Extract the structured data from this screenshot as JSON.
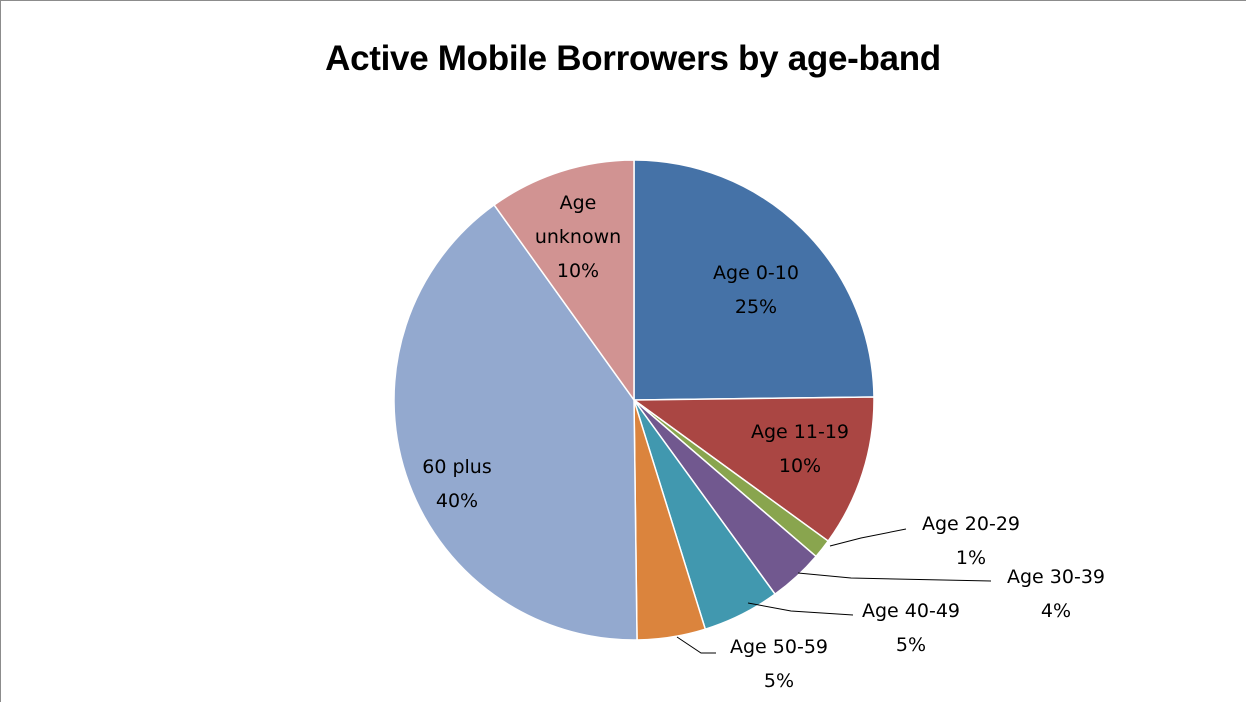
{
  "chart_data": {
    "type": "pie",
    "title": "Active Mobile Borrowers by age-band",
    "slices": [
      {
        "label": "Age 0-10",
        "percent_label": "25%",
        "value": 24.8,
        "color": "#4572A7"
      },
      {
        "label": "Age 11-19",
        "percent_label": "10%",
        "value": 10.2,
        "color": "#AA4643"
      },
      {
        "label": "Age 20-29",
        "percent_label": "1%",
        "value": 1.3,
        "color": "#89A54E"
      },
      {
        "label": "Age 30-39",
        "percent_label": "4%",
        "value": 3.7,
        "color": "#71588F"
      },
      {
        "label": "Age 40-49",
        "percent_label": "5%",
        "value": 5.2,
        "color": "#4198AF"
      },
      {
        "label": "Age 50-59",
        "percent_label": "5%",
        "value": 4.6,
        "color": "#DB843D"
      },
      {
        "label": "60 plus",
        "percent_label": "40%",
        "value": 40.3,
        "color": "#93A9CF"
      },
      {
        "label": "Age unknown",
        "percent_label": "10%",
        "value": 9.9,
        "color": "#D19392"
      }
    ],
    "start_angle": "12 o'clock",
    "direction": "clockwise",
    "legend": "none"
  }
}
